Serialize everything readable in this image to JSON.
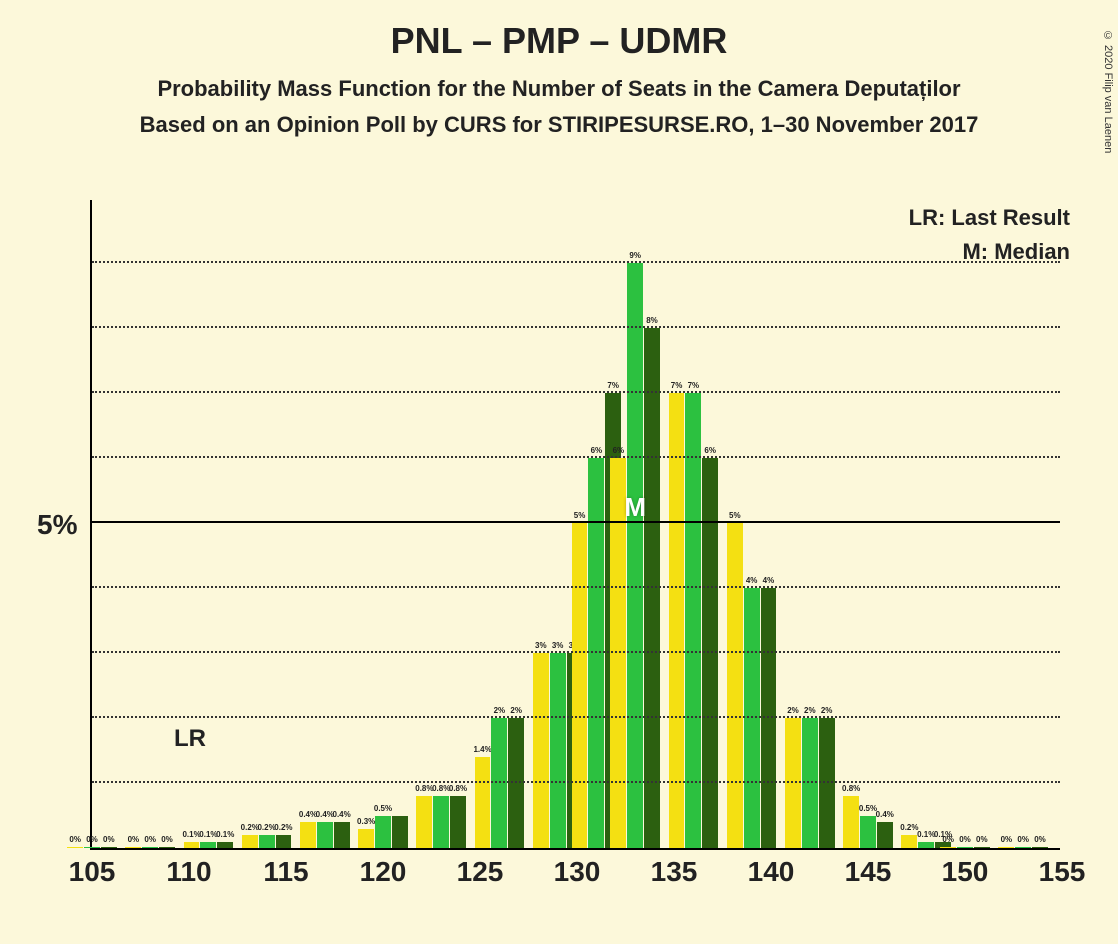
{
  "copyright": "© 2020 Filip van Laenen",
  "title": "PNL – PMP – UDMR",
  "subtitle1": "Probability Mass Function for the Number of Seats in the Camera Deputaților",
  "subtitle2": "Based on an Opinion Poll by CURS for STIRIPESURSE.RO, 1–30 November 2017",
  "legend": {
    "lr": "LR: Last Result",
    "m": "M: Median"
  },
  "chart": {
    "type": "bar",
    "background_color": "#fcf8da",
    "series_colors": [
      "#f4e012",
      "#2cc140",
      "#2c6010"
    ],
    "x_range": [
      105,
      155
    ],
    "x_ticks": [
      105,
      110,
      115,
      120,
      125,
      130,
      135,
      140,
      145,
      150,
      155
    ],
    "y_max": 10,
    "y_label_at": 5,
    "y_label": "5%",
    "minor_gridlines": [
      1,
      2,
      3,
      4,
      6,
      7,
      8,
      9
    ],
    "lr_x": 110,
    "m_x": 133,
    "data": [
      {
        "x": 105,
        "v": [
          0,
          0,
          0
        ],
        "l": [
          "0%",
          "0%",
          "0%"
        ]
      },
      {
        "x": 108,
        "v": [
          0,
          0,
          0
        ],
        "l": [
          "0%",
          "0%",
          "0%"
        ]
      },
      {
        "x": 111,
        "v": [
          0.1,
          0.1,
          0.1
        ],
        "l": [
          "0.1%",
          "0.1%",
          "0.1%"
        ]
      },
      {
        "x": 114,
        "v": [
          0.2,
          0.2,
          0.2
        ],
        "l": [
          "0.2%",
          "0.2%",
          "0.2%"
        ]
      },
      {
        "x": 117,
        "v": [
          0.4,
          0.4,
          0.4
        ],
        "l": [
          "0.4%",
          "0.4%",
          "0.4%"
        ]
      },
      {
        "x": 120,
        "v": [
          0.3,
          0.5,
          0.5
        ],
        "l": [
          "0.3%",
          "0.5%",
          ""
        ]
      },
      {
        "x": 123,
        "v": [
          0.8,
          0.8,
          0.8
        ],
        "l": [
          "0.8%",
          "0.8%",
          "0.8%"
        ]
      },
      {
        "x": 126,
        "v": [
          1.4,
          2,
          2
        ],
        "l": [
          "1.4%",
          "2%",
          "2%"
        ]
      },
      {
        "x": 129,
        "v": [
          3,
          3,
          3
        ],
        "l": [
          "3%",
          "3%",
          "3%"
        ]
      },
      {
        "x": 131,
        "v": [
          5,
          6,
          7
        ],
        "l": [
          "5%",
          "6%",
          "7%"
        ]
      },
      {
        "x": 133,
        "v": [
          6,
          9,
          8
        ],
        "l": [
          "6%",
          "9%",
          "8%"
        ]
      },
      {
        "x": 136,
        "v": [
          7,
          7,
          6
        ],
        "l": [
          "7%",
          "7%",
          "6%"
        ]
      },
      {
        "x": 139,
        "v": [
          5,
          4,
          4
        ],
        "l": [
          "5%",
          "4%",
          "4%"
        ]
      },
      {
        "x": 142,
        "v": [
          2,
          2,
          2
        ],
        "l": [
          "2%",
          "2%",
          "2%"
        ]
      },
      {
        "x": 145,
        "v": [
          0.8,
          0.5,
          0.4
        ],
        "l": [
          "0.8%",
          "0.5%",
          "0.4%"
        ]
      },
      {
        "x": 148,
        "v": [
          0.2,
          0.1,
          0.1
        ],
        "l": [
          "0.2%",
          "0.1%",
          "0.1%"
        ]
      },
      {
        "x": 150,
        "v": [
          0,
          0,
          0
        ],
        "l": [
          "0%",
          "0%",
          "0%"
        ]
      },
      {
        "x": 153,
        "v": [
          0,
          0,
          0
        ],
        "l": [
          "0%",
          "0%",
          "0%"
        ]
      }
    ]
  }
}
